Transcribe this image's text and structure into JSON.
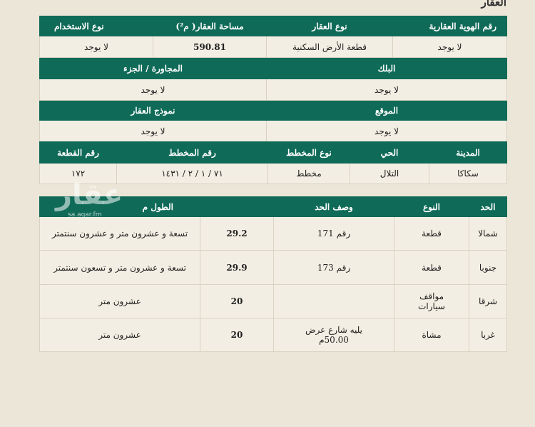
{
  "title": "العقار",
  "section1": {
    "headers": [
      "رقم الهوية العقارية",
      "نوع العقار",
      "مساحة العقار( م²)",
      "نوع الاستخدام"
    ],
    "values": [
      "لا يوجد",
      "قطعة الأرض السكنية",
      "590.81",
      "لا يوجد"
    ]
  },
  "section2": {
    "headers": [
      "البلك",
      "المجاورة / الجزء"
    ],
    "values": [
      "لا يوجد",
      "لا يوجد"
    ]
  },
  "section3": {
    "headers": [
      "الموقع",
      "نموذج العقار"
    ],
    "values": [
      "لا يوجد",
      "لا يوجد"
    ]
  },
  "section4": {
    "headers": [
      "المدينة",
      "الحي",
      "نوع المخطط",
      "رقم المخطط",
      "رقم القطعة"
    ],
    "values": [
      "سكاكا",
      "التلال",
      "مخطط",
      "٧١ / ١ / ٢ / ١٤٣١",
      "١٧٢"
    ]
  },
  "bounds": {
    "headers": [
      "الحد",
      "النوع",
      "وصف الحد",
      "الطول م"
    ],
    "rows": [
      {
        "side": "شمالا",
        "type": "قطعة",
        "desc": "رقم 171",
        "length": "29.2",
        "length_text": "تسعة و عشرون متر و عشرون سنتمتر"
      },
      {
        "side": "جنوبا",
        "type": "قطعة",
        "desc": "رقم 173",
        "length": "29.9",
        "length_text": "تسعة و عشرون متر و تسعون سنتمتر"
      },
      {
        "side": "شرقا",
        "type": "مواقف سيارات",
        "desc": "",
        "length": "20",
        "length_text": "عشرون متر"
      },
      {
        "side": "غربا",
        "type": "مشاة",
        "desc": "يليه شارع عرض 50.00م",
        "length": "20",
        "length_text": "عشرون متر"
      }
    ]
  },
  "watermark": {
    "text": "عقار",
    "url": "sa.aqar.fm"
  },
  "colors": {
    "header": "#0f6a58",
    "background": "#ece6d8"
  }
}
